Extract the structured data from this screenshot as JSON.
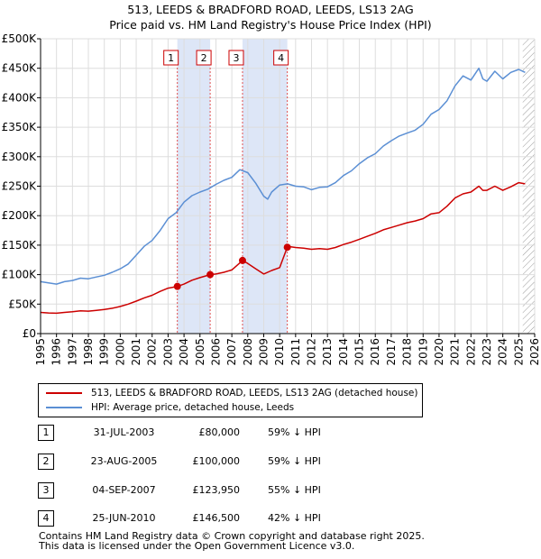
{
  "chart_data": {
    "type": "line",
    "title": "513, LEEDS & BRADFORD ROAD, LEEDS, LS13 2AG",
    "subtitle": "Price paid vs. HM Land Registry's House Price Index (HPI)",
    "xlabel": "",
    "ylabel": "",
    "xlim": [
      1995,
      2026
    ],
    "ylim": [
      0,
      500000
    ],
    "x_ticks": [
      "1995",
      "1996",
      "1997",
      "1998",
      "1999",
      "2000",
      "2001",
      "2002",
      "2003",
      "2004",
      "2005",
      "2006",
      "2007",
      "2008",
      "2009",
      "2010",
      "2011",
      "2012",
      "2013",
      "2014",
      "2015",
      "2016",
      "2017",
      "2018",
      "2019",
      "2020",
      "2021",
      "2022",
      "2023",
      "2024",
      "2025",
      "2026"
    ],
    "y_ticks": [
      {
        "value": 0,
        "label": "£0"
      },
      {
        "value": 50000,
        "label": "£50K"
      },
      {
        "value": 100000,
        "label": "£100K"
      },
      {
        "value": 150000,
        "label": "£150K"
      },
      {
        "value": 200000,
        "label": "£200K"
      },
      {
        "value": 250000,
        "label": "£250K"
      },
      {
        "value": 300000,
        "label": "£300K"
      },
      {
        "value": 350000,
        "label": "£350K"
      },
      {
        "value": 400000,
        "label": "£400K"
      },
      {
        "value": 450000,
        "label": "£450K"
      },
      {
        "value": 500000,
        "label": "£500K"
      }
    ],
    "colors": {
      "property": "#cc0000",
      "hpi": "#5b8fd4",
      "shade": "#dde6f7",
      "vline": "#e05050",
      "hatch": "#999999"
    },
    "shaded_periods": [
      [
        2003.58,
        2005.64
      ],
      [
        2007.67,
        2010.48
      ]
    ],
    "hatch_from": 2025.25,
    "series": [
      {
        "name": "hpi",
        "x": [
          1995,
          1995.5,
          1996,
          1996.5,
          1997,
          1997.5,
          1998,
          1998.5,
          1999,
          1999.5,
          2000,
          2000.5,
          2001,
          2001.5,
          2002,
          2002.5,
          2003,
          2003.5,
          2004,
          2004.5,
          2005,
          2005.5,
          2006,
          2006.5,
          2007,
          2007.5,
          2008,
          2008.5,
          2009,
          2009.25,
          2009.5,
          2010,
          2010.5,
          2011,
          2011.5,
          2012,
          2012.5,
          2013,
          2013.5,
          2014,
          2014.5,
          2015,
          2015.5,
          2016,
          2016.5,
          2017,
          2017.5,
          2018,
          2018.5,
          2019,
          2019.5,
          2020,
          2020.5,
          2021,
          2021.5,
          2022,
          2022.5,
          2022.75,
          2023,
          2023.5,
          2024,
          2024.5,
          2025,
          2025.4
        ],
        "values": [
          88000,
          86000,
          84000,
          88000,
          90000,
          94000,
          93000,
          96000,
          99000,
          104000,
          110000,
          118000,
          133000,
          148000,
          158000,
          175000,
          195000,
          205000,
          223000,
          234000,
          240000,
          245000,
          253000,
          260000,
          265000,
          278000,
          273000,
          255000,
          233000,
          228000,
          240000,
          252000,
          254000,
          250000,
          249000,
          244000,
          248000,
          249000,
          256000,
          268000,
          276000,
          288000,
          298000,
          305000,
          318000,
          327000,
          335000,
          340000,
          345000,
          355000,
          372000,
          380000,
          395000,
          420000,
          437000,
          430000,
          450000,
          432000,
          428000,
          445000,
          432000,
          443000,
          448000,
          443000
        ]
      },
      {
        "name": "property",
        "x": [
          1995,
          1995.5,
          1996,
          1996.5,
          1997,
          1997.5,
          1998,
          1998.5,
          1999,
          1999.5,
          2000,
          2000.5,
          2001,
          2001.5,
          2002,
          2002.5,
          2003,
          2003.58,
          2004,
          2004.5,
          2005,
          2005.64,
          2006,
          2006.5,
          2007,
          2007.67,
          2008,
          2008.5,
          2009,
          2009.5,
          2010,
          2010.48,
          2010.5,
          2011,
          2011.5,
          2012,
          2012.5,
          2013,
          2013.5,
          2014,
          2014.5,
          2015,
          2015.5,
          2016,
          2016.5,
          2017,
          2017.5,
          2018,
          2018.5,
          2019,
          2019.5,
          2020,
          2020.5,
          2021,
          2021.5,
          2022,
          2022.5,
          2022.75,
          2023,
          2023.5,
          2024,
          2024.5,
          2025,
          2025.4
        ],
        "values": [
          36000,
          35000,
          34500,
          36000,
          37000,
          38500,
          38000,
          39500,
          41000,
          43000,
          46000,
          50000,
          55000,
          60500,
          65000,
          71500,
          77000,
          80000,
          84000,
          90500,
          95000,
          100000,
          101000,
          104000,
          108000,
          123950,
          119000,
          110000,
          101000,
          107000,
          112000,
          146500,
          148000,
          146000,
          145000,
          143000,
          144000,
          143000,
          146000,
          151000,
          155000,
          160000,
          165000,
          170000,
          176000,
          180000,
          184000,
          188000,
          191000,
          195000,
          203000,
          205000,
          216000,
          230000,
          237000,
          240000,
          250000,
          243000,
          243000,
          250000,
          243000,
          249000,
          256000,
          254000
        ]
      }
    ],
    "sale_points": [
      {
        "id": "1",
        "x": 2003.58,
        "y": 80000
      },
      {
        "id": "2",
        "x": 2005.64,
        "y": 100000
      },
      {
        "id": "3",
        "x": 2007.67,
        "y": 123950
      },
      {
        "id": "4",
        "x": 2010.48,
        "y": 146500
      }
    ]
  },
  "legend": {
    "property_label": "513, LEEDS & BRADFORD ROAD, LEEDS, LS13 2AG (detached house)",
    "hpi_label": "HPI: Average price, detached house, Leeds"
  },
  "sales": [
    {
      "num": "1",
      "date": "31-JUL-2003",
      "price": "£80,000",
      "hpi": "59% ↓ HPI"
    },
    {
      "num": "2",
      "date": "23-AUG-2005",
      "price": "£100,000",
      "hpi": "59% ↓ HPI"
    },
    {
      "num": "3",
      "date": "04-SEP-2007",
      "price": "£123,950",
      "hpi": "55% ↓ HPI"
    },
    {
      "num": "4",
      "date": "25-JUN-2010",
      "price": "£146,500",
      "hpi": "42% ↓ HPI"
    }
  ],
  "footer": {
    "line1": "Contains HM Land Registry data © Crown copyright and database right 2025.",
    "line2": "This data is licensed under the Open Government Licence v3.0."
  }
}
